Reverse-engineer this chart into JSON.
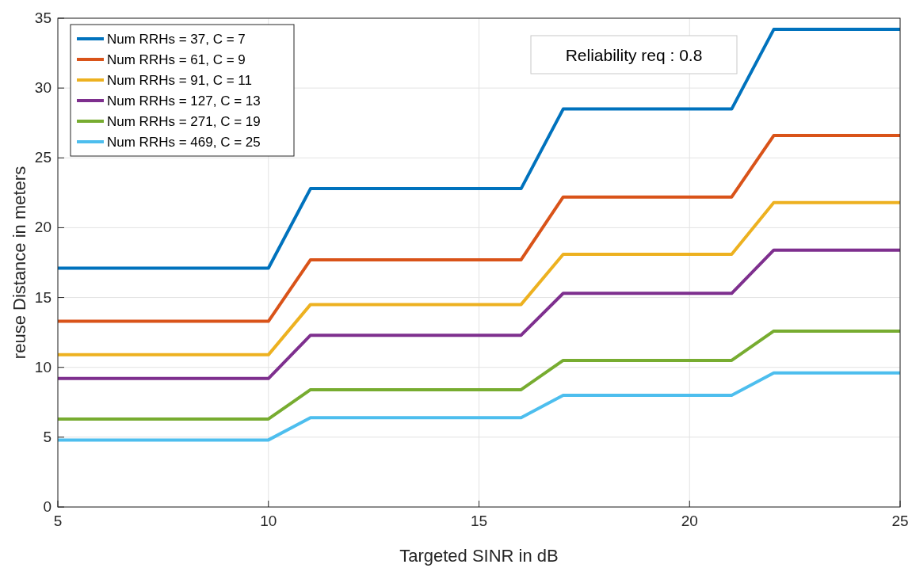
{
  "chart_data": {
    "type": "line",
    "xlabel": "Targeted SINR in dB",
    "ylabel": "reuse Distance in meters",
    "annotations": [
      "Reliability req : 0.8"
    ],
    "x": [
      5,
      10,
      11,
      16,
      17,
      21,
      22,
      25
    ],
    "series": [
      {
        "name": "Num RRHs = 37, C = 7",
        "color": "#0072bd",
        "values": [
          17.1,
          17.1,
          22.8,
          22.8,
          28.5,
          28.5,
          34.2,
          34.2
        ]
      },
      {
        "name": "Num RRHs = 61, C = 9",
        "color": "#d95319",
        "values": [
          13.3,
          13.3,
          17.7,
          17.7,
          22.2,
          22.2,
          26.6,
          26.6
        ]
      },
      {
        "name": "Num RRHs = 91, C = 11",
        "color": "#edb120",
        "values": [
          10.9,
          10.9,
          14.5,
          14.5,
          18.1,
          18.1,
          21.8,
          21.8
        ]
      },
      {
        "name": "Num RRHs = 127, C = 13",
        "color": "#7e2f8e",
        "values": [
          9.2,
          9.2,
          12.3,
          12.3,
          15.3,
          15.3,
          18.4,
          18.4
        ]
      },
      {
        "name": "Num RRHs = 271, C = 19",
        "color": "#77ac30",
        "values": [
          6.3,
          6.3,
          8.4,
          8.4,
          10.5,
          10.5,
          12.6,
          12.6
        ]
      },
      {
        "name": "Num RRHs = 469, C = 25",
        "color": "#4dbeee",
        "values": [
          4.8,
          4.8,
          6.4,
          6.4,
          8.0,
          8.0,
          9.6,
          9.6
        ]
      }
    ],
    "xlim": [
      5,
      25
    ],
    "ylim": [
      0,
      35
    ],
    "xticks": [
      5,
      10,
      15,
      20,
      25
    ],
    "yticks": [
      0,
      5,
      10,
      15,
      20,
      25,
      30,
      35
    ],
    "grid": true,
    "legend": "top left",
    "line_style": "solid",
    "marker": "none"
  }
}
